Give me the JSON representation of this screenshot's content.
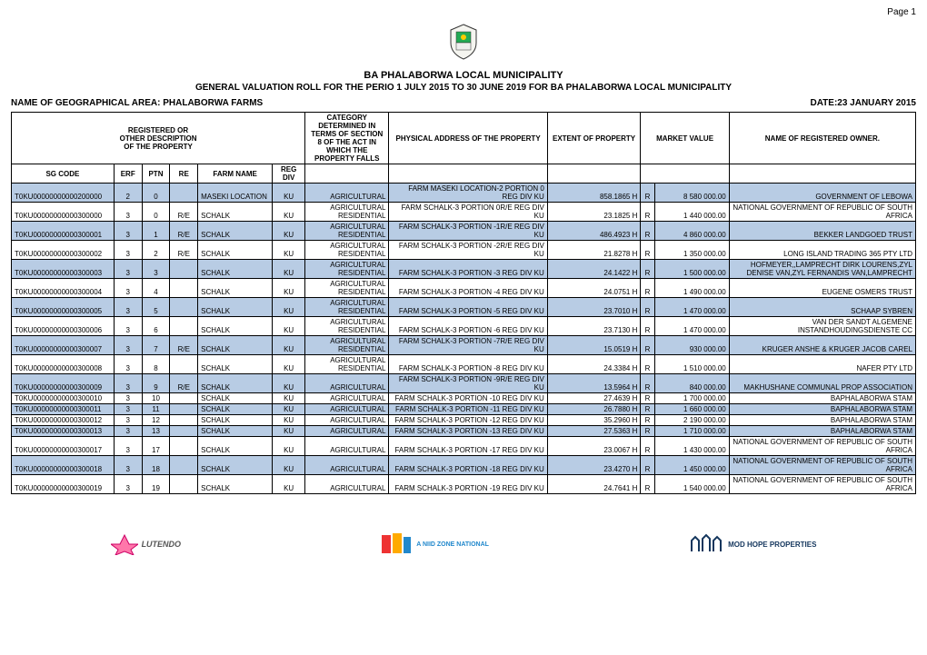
{
  "page_label": "Page 1",
  "municipality": "BA PHALABORWA LOCAL MUNICIPALITY",
  "subtitle": "GENERAL VALUATION ROLL FOR THE PERIO 1 JULY 2015 TO 30 JUNE 2019 FOR BA PHALABORWA LOCAL MUNICIPALITY",
  "area_label": "NAME OF GEOGRAPHICAL AREA: PHALABORWA FARMS",
  "date_label": "DATE:23 JANUARY 2015",
  "headers": {
    "registered": "REGISTERED OR\nOTHER DESCRIPTION\nOF THE PROPERTY",
    "category": "CATEGORY DETERMINED IN TERMS OF SECTION 8 OF THE ACT IN WHICH THE PROPERTY FALLS",
    "address": "PHYSICAL ADDRESS OF THE PROPERTY",
    "extent": "EXTENT OF PROPERTY",
    "market": "MARKET VALUE",
    "owner": "NAME OF REGISTERED OWNER.",
    "sg": "SG CODE",
    "erf": "ERF",
    "ptn": "PTN",
    "re": "RE",
    "farm": "FARM NAME",
    "regdiv": "REG DIV"
  },
  "rows": [
    {
      "sg": "T0KU00000000000200000",
      "erf": "2",
      "ptn": "0",
      "re": "",
      "farm": "MASEKI LOCATION",
      "reg": "KU",
      "cat": "AGRICULTURAL",
      "addr": "FARM MASEKI LOCATION-2 PORTION 0 REG DIV KU",
      "ext": "858.1865 H",
      "cur": "R",
      "val": "8 580 000.00",
      "own": "GOVERNMENT OF LEBOWA"
    },
    {
      "sg": "T0KU00000000000300000",
      "erf": "3",
      "ptn": "0",
      "re": "R/E",
      "farm": "SCHALK",
      "reg": "KU",
      "cat": "AGRICULTURAL RESIDENTIAL",
      "addr": "FARM SCHALK-3 PORTION 0R/E REG DIV KU",
      "ext": "23.1825 H",
      "cur": "R",
      "val": "1 440 000.00",
      "own": "NATIONAL GOVERNMENT OF REPUBLIC OF SOUTH AFRICA"
    },
    {
      "sg": "T0KU00000000000300001",
      "erf": "3",
      "ptn": "1",
      "re": "R/E",
      "farm": "SCHALK",
      "reg": "KU",
      "cat": "AGRICULTURAL RESIDENTIAL",
      "addr": "FARM SCHALK-3 PORTION -1R/E REG DIV KU",
      "ext": "486.4923 H",
      "cur": "R",
      "val": "4 860 000.00",
      "own": "BEKKER LANDGOED TRUST"
    },
    {
      "sg": "T0KU00000000000300002",
      "erf": "3",
      "ptn": "2",
      "re": "R/E",
      "farm": "SCHALK",
      "reg": "KU",
      "cat": "AGRICULTURAL RESIDENTIAL",
      "addr": "FARM SCHALK-3 PORTION -2R/E REG DIV KU",
      "ext": "21.8278 H",
      "cur": "R",
      "val": "1 350 000.00",
      "own": "LONG ISLAND TRADING 365 PTY LTD"
    },
    {
      "sg": "T0KU00000000000300003",
      "erf": "3",
      "ptn": "3",
      "re": "",
      "farm": "SCHALK",
      "reg": "KU",
      "cat": "AGRICULTURAL RESIDENTIAL",
      "addr": "FARM SCHALK-3 PORTION -3 REG DIV KU",
      "ext": "24.1422 H",
      "cur": "R",
      "val": "1 500 000.00",
      "own": "HOFMEYER,,LAMPRECHT DIRK LOURENS,ZYL DENISE VAN,ZYL FERNANDIS VAN,LAMPRECHT"
    },
    {
      "sg": "T0KU00000000000300004",
      "erf": "3",
      "ptn": "4",
      "re": "",
      "farm": "SCHALK",
      "reg": "KU",
      "cat": "AGRICULTURAL RESIDENTIAL",
      "addr": "FARM SCHALK-3 PORTION -4 REG DIV KU",
      "ext": "24.0751 H",
      "cur": "R",
      "val": "1 490 000.00",
      "own": "EUGENE OSMERS TRUST"
    },
    {
      "sg": "T0KU00000000000300005",
      "erf": "3",
      "ptn": "5",
      "re": "",
      "farm": "SCHALK",
      "reg": "KU",
      "cat": "AGRICULTURAL RESIDENTIAL",
      "addr": "FARM SCHALK-3 PORTION -5 REG DIV KU",
      "ext": "23.7010 H",
      "cur": "R",
      "val": "1 470 000.00",
      "own": "SCHAAP SYBREN"
    },
    {
      "sg": "T0KU00000000000300006",
      "erf": "3",
      "ptn": "6",
      "re": "",
      "farm": "SCHALK",
      "reg": "KU",
      "cat": "AGRICULTURAL RESIDENTIAL",
      "addr": "FARM SCHALK-3 PORTION -6 REG DIV KU",
      "ext": "23.7130 H",
      "cur": "R",
      "val": "1 470 000.00",
      "own": "VAN DER SANDT ALGEMENE INSTANDHOUDINGSDIENSTE CC"
    },
    {
      "sg": "T0KU00000000000300007",
      "erf": "3",
      "ptn": "7",
      "re": "R/E",
      "farm": "SCHALK",
      "reg": "KU",
      "cat": "AGRICULTURAL RESIDENTIAL",
      "addr": "FARM SCHALK-3 PORTION -7R/E REG DIV KU",
      "ext": "15.0519 H",
      "cur": "R",
      "val": "930 000.00",
      "own": "KRUGER ANSHE & KRUGER JACOB CAREL"
    },
    {
      "sg": "T0KU00000000000300008",
      "erf": "3",
      "ptn": "8",
      "re": "",
      "farm": "SCHALK",
      "reg": "KU",
      "cat": "AGRICULTURAL RESIDENTIAL",
      "addr": "FARM SCHALK-3 PORTION -8 REG DIV KU",
      "ext": "24.3384 H",
      "cur": "R",
      "val": "1 510 000.00",
      "own": "NAFER PTY LTD"
    },
    {
      "sg": "T0KU00000000000300009",
      "erf": "3",
      "ptn": "9",
      "re": "R/E",
      "farm": "SCHALK",
      "reg": "KU",
      "cat": "AGRICULTURAL",
      "addr": "FARM SCHALK-3 PORTION -9R/E REG DIV KU",
      "ext": "13.5964 H",
      "cur": "R",
      "val": "840 000.00",
      "own": "MAKHUSHANE COMMUNAL PROP ASSOCIATION"
    },
    {
      "sg": "T0KU00000000000300010",
      "erf": "3",
      "ptn": "10",
      "re": "",
      "farm": "SCHALK",
      "reg": "KU",
      "cat": "AGRICULTURAL",
      "addr": "FARM SCHALK-3 PORTION -10 REG DIV KU",
      "ext": "27.4639 H",
      "cur": "R",
      "val": "1 700 000.00",
      "own": "BAPHALABORWA STAM"
    },
    {
      "sg": "T0KU00000000000300011",
      "erf": "3",
      "ptn": "11",
      "re": "",
      "farm": "SCHALK",
      "reg": "KU",
      "cat": "AGRICULTURAL",
      "addr": "FARM SCHALK-3 PORTION -11 REG DIV KU",
      "ext": "26.7880 H",
      "cur": "R",
      "val": "1 660 000.00",
      "own": "BAPHALABORWA STAM"
    },
    {
      "sg": "T0KU00000000000300012",
      "erf": "3",
      "ptn": "12",
      "re": "",
      "farm": "SCHALK",
      "reg": "KU",
      "cat": "AGRICULTURAL",
      "addr": "FARM SCHALK-3 PORTION -12 REG DIV KU",
      "ext": "35.2960 H",
      "cur": "R",
      "val": "2 190 000.00",
      "own": "BAPHALABORWA STAM"
    },
    {
      "sg": "T0KU00000000000300013",
      "erf": "3",
      "ptn": "13",
      "re": "",
      "farm": "SCHALK",
      "reg": "KU",
      "cat": "AGRICULTURAL",
      "addr": "FARM SCHALK-3 PORTION -13 REG DIV KU",
      "ext": "27.5363 H",
      "cur": "R",
      "val": "1 710 000.00",
      "own": "BAPHALABORWA STAM"
    },
    {
      "sg": "T0KU00000000000300017",
      "erf": "3",
      "ptn": "17",
      "re": "",
      "farm": "SCHALK",
      "reg": "KU",
      "cat": "AGRICULTURAL",
      "addr": "FARM SCHALK-3 PORTION -17 REG DIV KU",
      "ext": "23.0067 H",
      "cur": "R",
      "val": "1 430 000.00",
      "own": "NATIONAL GOVERNMENT OF REPUBLIC OF SOUTH AFRICA"
    },
    {
      "sg": "T0KU00000000000300018",
      "erf": "3",
      "ptn": "18",
      "re": "",
      "farm": "SCHALK",
      "reg": "KU",
      "cat": "AGRICULTURAL",
      "addr": "FARM SCHALK-3 PORTION -18 REG DIV KU",
      "ext": "23.4270 H",
      "cur": "R",
      "val": "1 450 000.00",
      "own": "NATIONAL GOVERNMENT OF REPUBLIC OF SOUTH AFRICA"
    },
    {
      "sg": "T0KU00000000000300019",
      "erf": "3",
      "ptn": "19",
      "re": "",
      "farm": "SCHALK",
      "reg": "KU",
      "cat": "AGRICULTURAL",
      "addr": "FARM SCHALK-3 PORTION -19 REG DIV KU",
      "ext": "24.7641 H",
      "cur": "R",
      "val": "1 540 000.00",
      "own": "NATIONAL GOVERNMENT OF REPUBLIC OF SOUTH AFRICA"
    }
  ],
  "logos": {
    "left": "LUTENDO",
    "mid": "A NIID ZONE NATIONAL",
    "right": "MOD HOPE PROPERTIES"
  },
  "colors": {
    "alt_row": "#b8cce4",
    "border": "#000000"
  }
}
